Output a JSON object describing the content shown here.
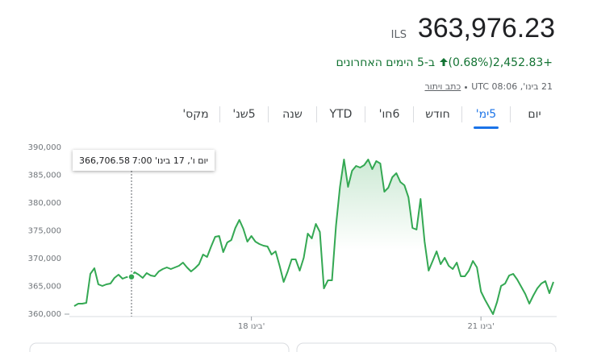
{
  "header": {
    "currency": "ILS",
    "price": "363,976.23",
    "change": "+2,452.83",
    "change_percent": "(0.68%)",
    "period": "ב-5 הימים האחרונים",
    "timestamp": "21 בינו', UTC 08:06",
    "disclaimer": "כתב ויתור"
  },
  "tabs": [
    "יום",
    "5ימ'",
    "חודש",
    "6חו'",
    "YTD",
    "שנה",
    "5שנ'",
    "מקס'"
  ],
  "selected_tab": 1,
  "chart_data": {
    "type": "line",
    "color": "#34a853",
    "tooltip": {
      "title": "יום ו', 17 בינו' 7:00",
      "value": 366706.58,
      "value_label": "366,706.58"
    },
    "categories": [
      null,
      null,
      null,
      null,
      null,
      null,
      null,
      null,
      null,
      null,
      null,
      null,
      null,
      null,
      null,
      null,
      null,
      null,
      null,
      null,
      null,
      null,
      null,
      null,
      null,
      null,
      null,
      null,
      null,
      null,
      null,
      null,
      null,
      null,
      null,
      null,
      null,
      null,
      null,
      null,
      null,
      null,
      null,
      null,
      "18 בינו'",
      null,
      null,
      null,
      null,
      null,
      null,
      null,
      null,
      null,
      null,
      null,
      null,
      null,
      null,
      null,
      null,
      null,
      null,
      null,
      null,
      null,
      null,
      null,
      null,
      null,
      null,
      null,
      null,
      null,
      null,
      null,
      null,
      null,
      null,
      null,
      null,
      null,
      null,
      null,
      null,
      null,
      null,
      null,
      null,
      null,
      null,
      null,
      null,
      null,
      null,
      null,
      null,
      null,
      null,
      null,
      null,
      "21 בינו'",
      null,
      null,
      null,
      null,
      null,
      null,
      null,
      null,
      null,
      null,
      null,
      null,
      null,
      null,
      null,
      null,
      null,
      null
    ],
    "values": [
      361450,
      361880,
      361880,
      362030,
      367250,
      368260,
      365360,
      365070,
      365360,
      365510,
      366520,
      367100,
      366380,
      366670,
      366670,
      367540,
      367100,
      366520,
      367390,
      366960,
      366810,
      367680,
      368120,
      368410,
      368120,
      368410,
      368700,
      369280,
      368410,
      367680,
      368260,
      368990,
      370720,
      370290,
      372170,
      373910,
      374060,
      371160,
      372900,
      373330,
      375510,
      376960,
      375360,
      373040,
      374060,
      373040,
      372610,
      372320,
      372170,
      370720,
      371300,
      368700,
      365800,
      367680,
      369860,
      369860,
      367830,
      370150,
      374490,
      373620,
      376230,
      374780,
      364640,
      366090,
      366090,
      375940,
      382900,
      387830,
      382900,
      385800,
      386670,
      386380,
      386810,
      387830,
      386090,
      387540,
      387100,
      382030,
      382750,
      384640,
      385360,
      383770,
      383190,
      381010,
      375510,
      375220,
      380720,
      373040,
      367830,
      369570,
      371300,
      368990,
      370150,
      368700,
      368120,
      369280,
      366810,
      366810,
      367830,
      369570,
      368410,
      364060,
      362610,
      361300,
      360000,
      362170,
      365070,
      365510,
      366960,
      367250,
      366230,
      364930,
      363620,
      361880,
      363330,
      364640,
      365510,
      365940,
      363770,
      365800
    ],
    "ylim": [
      360000,
      390000
    ],
    "yticks": [
      {
        "value": 360000,
        "label": "360,000"
      },
      {
        "value": 365000,
        "label": "365,000"
      },
      {
        "value": 370000,
        "label": "370,000"
      },
      {
        "value": 375000,
        "label": "375,000"
      },
      {
        "value": 380000,
        "label": "380,000"
      },
      {
        "value": 385000,
        "label": "385,000"
      },
      {
        "value": 390000,
        "label": "390,000"
      }
    ]
  }
}
